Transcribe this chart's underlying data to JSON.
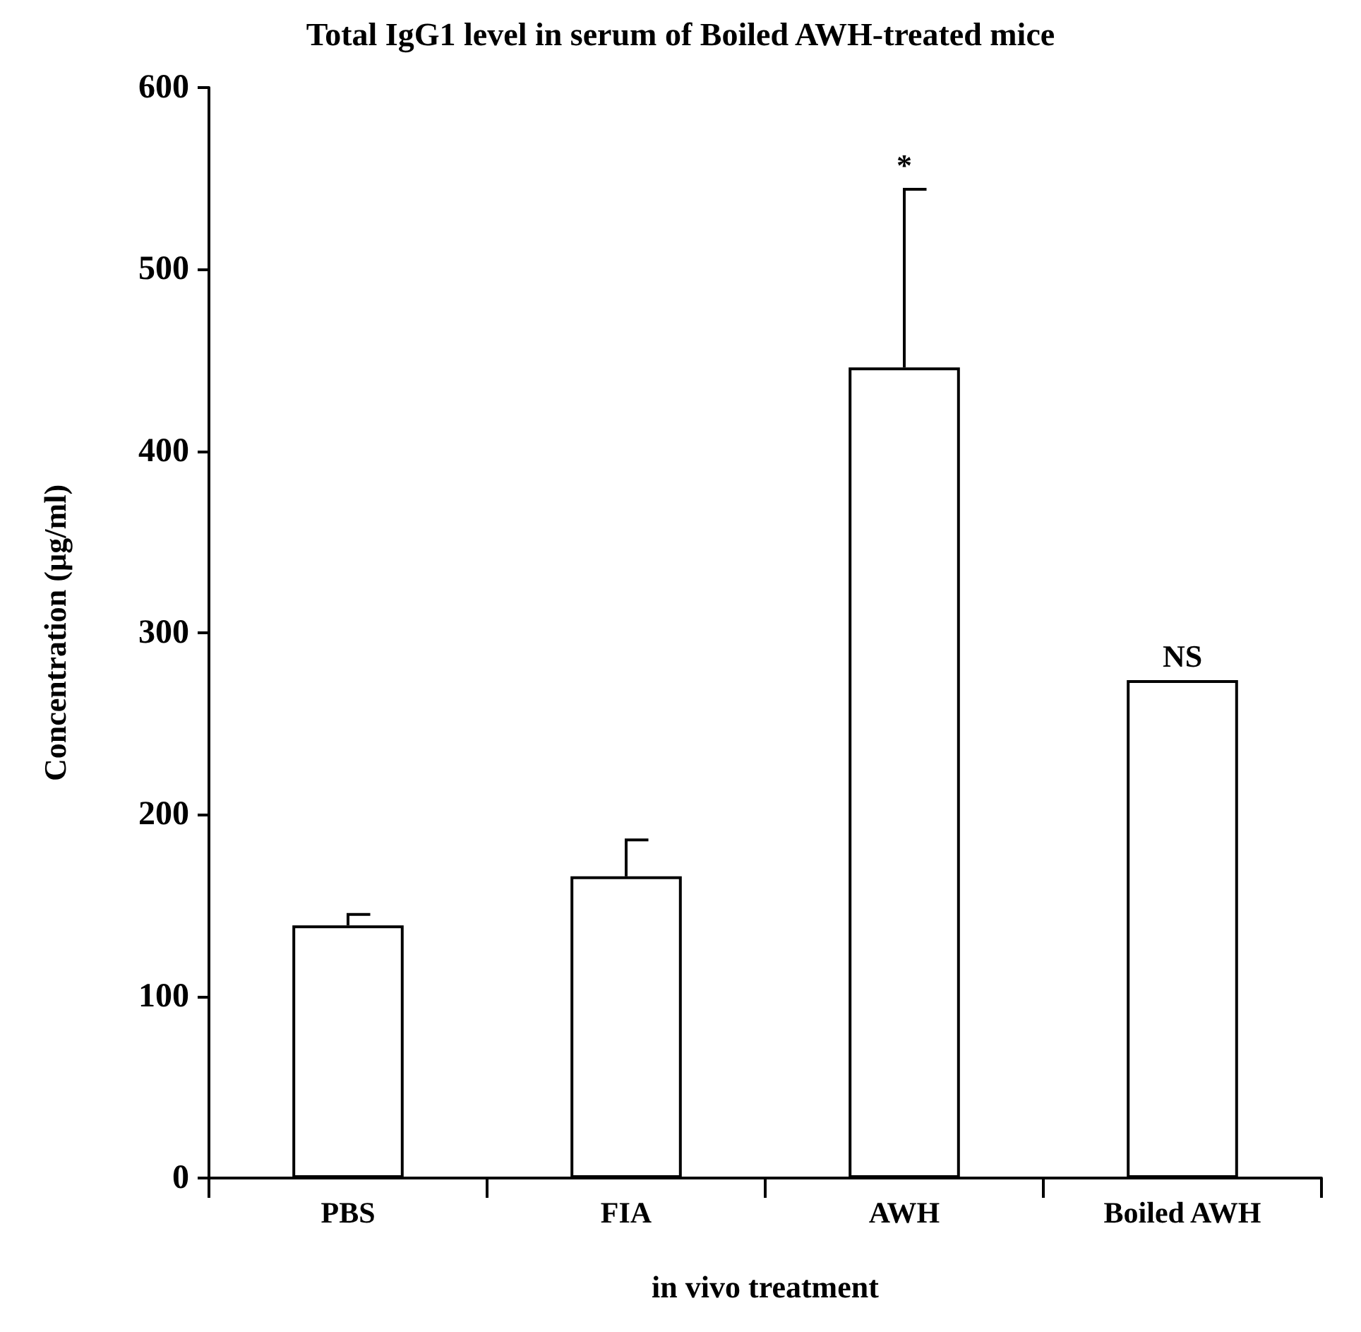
{
  "chart_data": {
    "type": "bar",
    "title": "Total IgG1 level in serum of Boiled AWH-treated mice",
    "xlabel": "in vivo treatment",
    "ylabel": "Concentration (µg/ml)",
    "categories": [
      "PBS",
      "FIA",
      "AWH",
      "Boiled AWH"
    ],
    "values": [
      139,
      166,
      446,
      274
    ],
    "color": "#ffffff",
    "errors": [
      [
        139,
        145
      ],
      [
        166,
        186
      ],
      [
        446,
        544
      ],
      null
    ],
    "ylim": [
      0,
      600
    ],
    "yticks": [
      0,
      100,
      200,
      300,
      400,
      500,
      600
    ],
    "grid": false,
    "legend": false,
    "annotations": [
      {
        "text": "*",
        "x": "AWH",
        "y": 544
      },
      {
        "text": "NS",
        "x": "Boiled AWH",
        "y": 274
      }
    ]
  }
}
